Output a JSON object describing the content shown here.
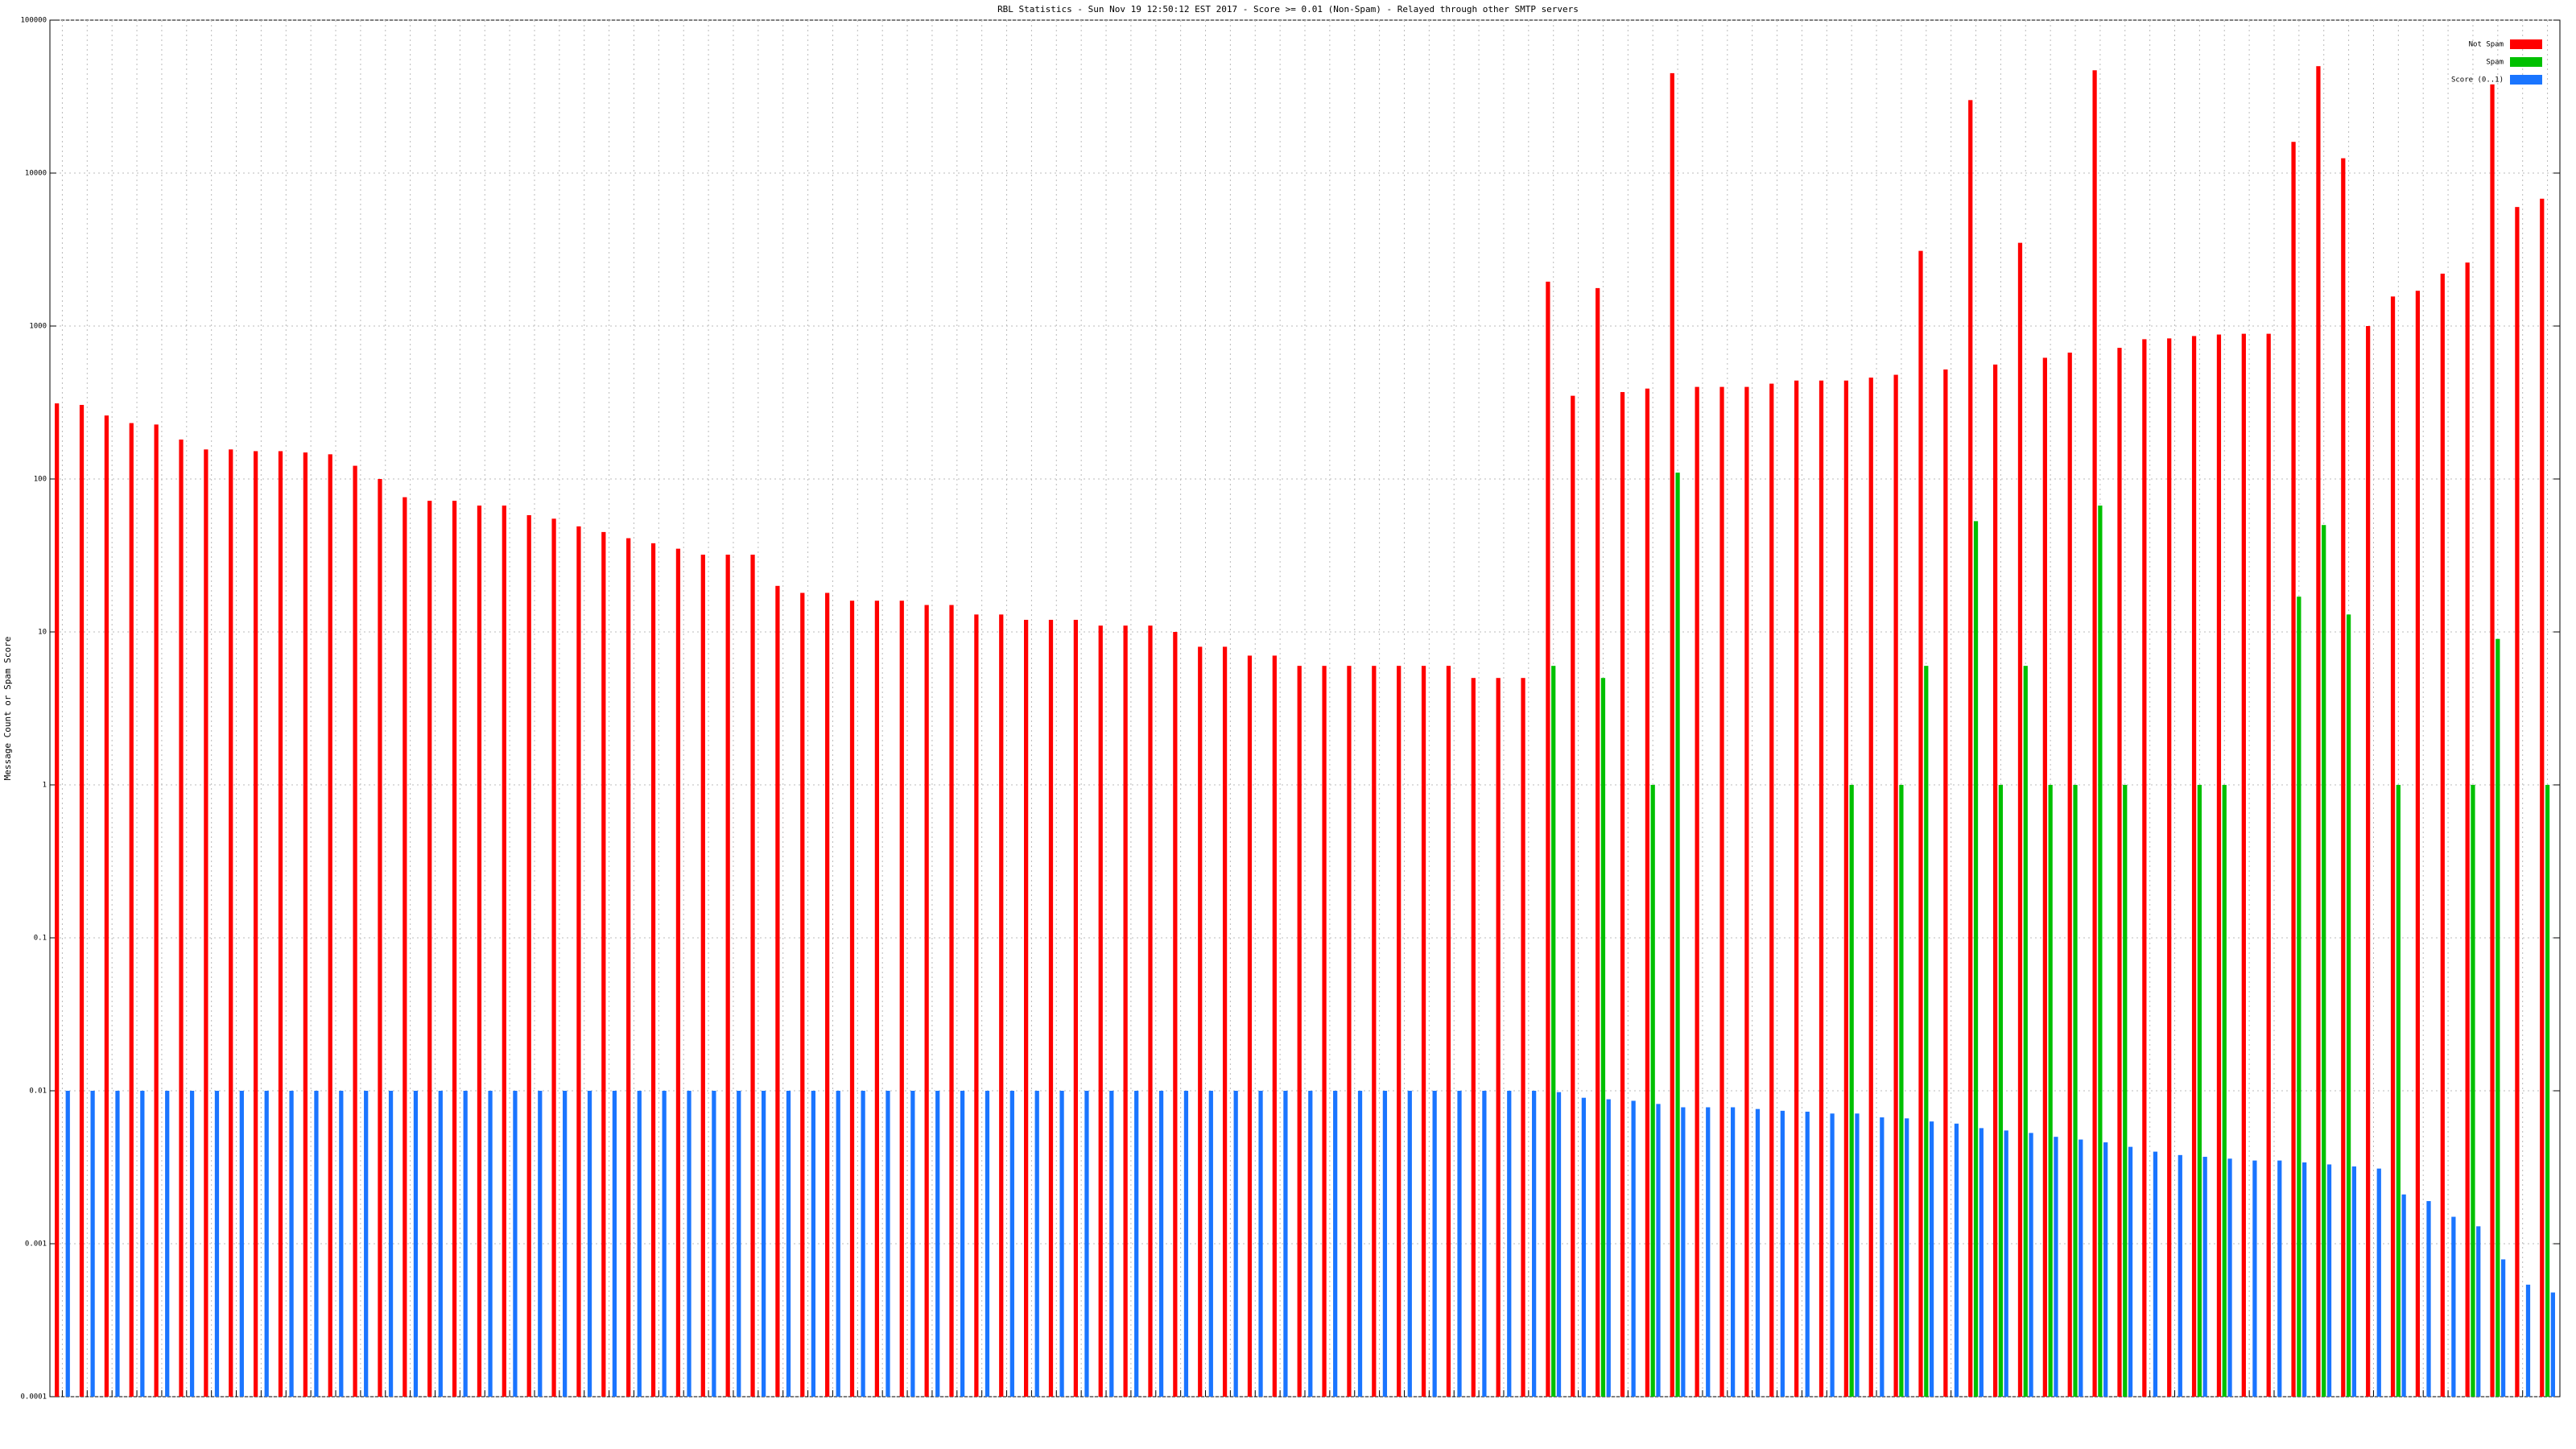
{
  "chart_data": {
    "type": "bar",
    "title": "RBL Statistics - Sun Nov 19 12:50:12 EST 2017 - Score >= 0.01 (Non-Spam) - Relayed through other SMTP servers",
    "y_label": "Message Count or Spam Score",
    "log_scale": true,
    "grid": true,
    "legend": "top-right",
    "ylim": [
      0.0001,
      100000
    ],
    "yticks": [
      0.0001,
      0.001,
      0.01,
      0.1,
      1,
      10,
      100,
      1000,
      10000,
      100000
    ],
    "categories": [
      null,
      null,
      null,
      null,
      null,
      null,
      null,
      null,
      null,
      null,
      null,
      null,
      null,
      null,
      null,
      null,
      null,
      null,
      null,
      null,
      null,
      null,
      null,
      null,
      null,
      null,
      null,
      null,
      null,
      null,
      null,
      null,
      null,
      null,
      null,
      null,
      null,
      null,
      null,
      null,
      null,
      null,
      null,
      null,
      null,
      null,
      null,
      null,
      null,
      null,
      null,
      null,
      null,
      null,
      null,
      null,
      null,
      null,
      null,
      null,
      null,
      null,
      null,
      null,
      null,
      null,
      null,
      null,
      null,
      null,
      null,
      null,
      null,
      null,
      null,
      null,
      null,
      null,
      null,
      null,
      null,
      null,
      null,
      null,
      null,
      null,
      null,
      null,
      null,
      null,
      null,
      null,
      null,
      null,
      null,
      null,
      null,
      null,
      null,
      null,
      null
    ],
    "series": [
      {
        "name": "Not Spam",
        "color": "#ff0000",
        "values": [
          312,
          305,
          260,
          232,
          227,
          181,
          156,
          156,
          152,
          152,
          149,
          145,
          122,
          100,
          76,
          72,
          72,
          67,
          67,
          58,
          55,
          49,
          45,
          41,
          38,
          35,
          32,
          32,
          32,
          20,
          18,
          18,
          16,
          16,
          16,
          15,
          15,
          13,
          13,
          12,
          12,
          12,
          11,
          11,
          11,
          10,
          8,
          8,
          7,
          7,
          6,
          6,
          6,
          6,
          6,
          6,
          6,
          5,
          5,
          5,
          1950,
          350,
          1770,
          370,
          390,
          45000,
          400,
          400,
          400,
          420,
          440,
          440,
          440,
          460,
          480,
          3100,
          520,
          30000,
          560,
          3500,
          620,
          670,
          47000,
          720,
          820,
          830,
          860,
          880,
          890,
          890,
          16000,
          50000,
          12500,
          1000,
          1560,
          1700,
          2200,
          2600,
          38000,
          6000,
          6800
        ]
      },
      {
        "name": "Spam",
        "color": "#00c000",
        "values": [
          null,
          null,
          null,
          null,
          null,
          null,
          null,
          null,
          null,
          null,
          null,
          null,
          null,
          null,
          null,
          null,
          null,
          null,
          null,
          null,
          null,
          null,
          null,
          null,
          null,
          null,
          null,
          null,
          null,
          null,
          null,
          null,
          null,
          null,
          null,
          null,
          null,
          null,
          null,
          null,
          null,
          null,
          null,
          null,
          null,
          null,
          null,
          null,
          null,
          null,
          null,
          null,
          null,
          null,
          null,
          null,
          null,
          null,
          null,
          null,
          6,
          null,
          5,
          null,
          1,
          110,
          null,
          null,
          null,
          null,
          null,
          null,
          1,
          null,
          1,
          6,
          null,
          53,
          1,
          6,
          1,
          1,
          67,
          1,
          null,
          null,
          1,
          1,
          null,
          null,
          17,
          50,
          13,
          null,
          1,
          null,
          null,
          1,
          9,
          null,
          1
        ]
      },
      {
        "name": "Score (0..1)",
        "color": "#1a75ff",
        "values": [
          0.01,
          0.01,
          0.01,
          0.01,
          0.01,
          0.01,
          0.01,
          0.01,
          0.01,
          0.01,
          0.01,
          0.01,
          0.01,
          0.01,
          0.01,
          0.01,
          0.01,
          0.01,
          0.01,
          0.01,
          0.01,
          0.01,
          0.01,
          0.01,
          0.01,
          0.01,
          0.01,
          0.01,
          0.01,
          0.01,
          0.01,
          0.01,
          0.01,
          0.01,
          0.01,
          0.01,
          0.01,
          0.01,
          0.01,
          0.01,
          0.01,
          0.01,
          0.01,
          0.01,
          0.01,
          0.01,
          0.01,
          0.01,
          0.01,
          0.01,
          0.01,
          0.01,
          0.01,
          0.01,
          0.01,
          0.01,
          0.01,
          0.01,
          0.01,
          0.01,
          0.0098,
          0.009,
          0.0088,
          0.0086,
          0.0082,
          0.0078,
          0.0078,
          0.0078,
          0.0076,
          0.0074,
          0.0073,
          0.0071,
          0.0071,
          0.0067,
          0.0066,
          0.0063,
          0.0061,
          0.0057,
          0.0055,
          0.0053,
          0.005,
          0.0048,
          0.0046,
          0.0043,
          0.004,
          0.0038,
          0.0037,
          0.0036,
          0.0035,
          0.0035,
          0.0034,
          0.0033,
          0.0032,
          0.0031,
          0.0021,
          0.0019,
          0.0015,
          0.0013,
          0.00079,
          0.00054,
          0.00048
        ]
      }
    ]
  }
}
